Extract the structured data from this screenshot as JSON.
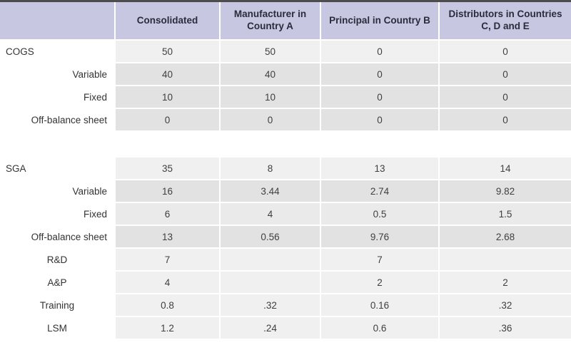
{
  "table": {
    "columns": [
      "",
      "Consolidated",
      "Manufacturer in Country A",
      "Principal in Country B",
      "Distributors in Countries C, D and E"
    ],
    "rows": [
      {
        "label": "COGS",
        "values": [
          "50",
          "50",
          "0",
          "0"
        ]
      },
      {
        "label": "Variable",
        "values": [
          "40",
          "40",
          "0",
          "0"
        ]
      },
      {
        "label": "Fixed",
        "values": [
          "10",
          "10",
          "0",
          "0"
        ]
      },
      {
        "label": "Off-balance sheet",
        "values": [
          "0",
          "0",
          "0",
          "0"
        ]
      },
      {
        "label": "SGA",
        "values": [
          "35",
          "8",
          "13",
          "14"
        ]
      },
      {
        "label": "Variable",
        "values": [
          "16",
          "3.44",
          "2.74",
          "9.82"
        ]
      },
      {
        "label": "Fixed",
        "values": [
          "6",
          "4",
          "0.5",
          "1.5"
        ]
      },
      {
        "label": "Off-balance sheet",
        "values": [
          "13",
          "0.56",
          "9.76",
          "2.68"
        ]
      },
      {
        "label": "R&D",
        "values": [
          "7",
          "",
          "7",
          ""
        ]
      },
      {
        "label": "A&P",
        "values": [
          "4",
          "",
          "2",
          "2"
        ]
      },
      {
        "label": "Training",
        "values": [
          "0.8",
          ".32",
          "0.16",
          ".32"
        ]
      },
      {
        "label": "LSM",
        "values": [
          "1.2",
          ".24",
          "0.6",
          ".36"
        ]
      }
    ],
    "colors": {
      "header_bg": "#c7c7e2",
      "row_light": "#f0f0f0",
      "row_mid": "#eaeaea",
      "row_dark": "#e2e2e2",
      "top_rule": "#4d4d4d",
      "header_text": "#2b2b3c",
      "body_text": "#3f3f3f"
    }
  }
}
